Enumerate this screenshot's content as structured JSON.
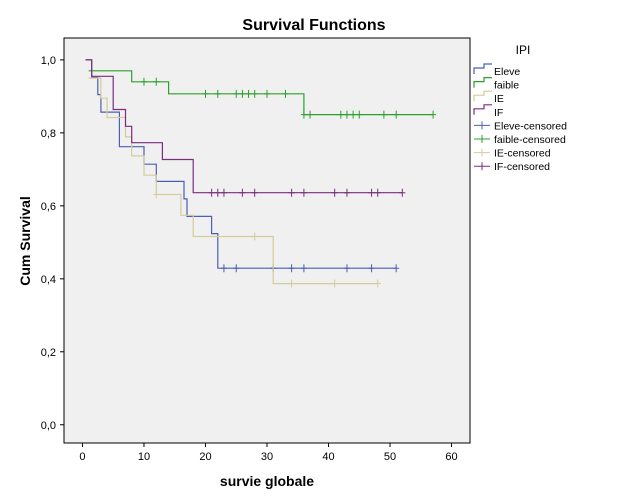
{
  "chart_data": {
    "type": "line",
    "title": "Survival Functions",
    "xlabel": "survie globale",
    "ylabel": "Cum Survival",
    "xlim": [
      -3,
      63
    ],
    "ylim": [
      -0.05,
      1.06
    ],
    "xticks": [
      0,
      10,
      20,
      30,
      40,
      50,
      60
    ],
    "xtick_labels": [
      "0",
      "10",
      "20",
      "30",
      "40",
      "50",
      "60"
    ],
    "yticks": [
      0.0,
      0.2,
      0.4,
      0.6,
      0.8,
      1.0
    ],
    "ytick_labels": [
      "0,0",
      "0,2",
      "0,4",
      "0,6",
      "0,8",
      "1,0"
    ],
    "legend_title": "IPI",
    "legend_position": "right",
    "background": "#f0f0f0",
    "series": [
      {
        "name": "Eleve",
        "color": "#4a5fb5",
        "steps": [
          [
            0.5,
            1.0
          ],
          [
            1.5,
            0.952
          ],
          [
            2.5,
            0.905
          ],
          [
            3,
            0.857
          ],
          [
            6,
            0.762
          ],
          [
            10,
            0.714
          ],
          [
            12,
            0.667
          ],
          [
            16.5,
            0.619
          ],
          [
            17,
            0.571
          ],
          [
            21,
            0.524
          ],
          [
            22,
            0.429
          ],
          [
            51,
            0.429
          ]
        ],
        "censored": [
          [
            23,
            0.429
          ],
          [
            25,
            0.429
          ],
          [
            31,
            0.429
          ],
          [
            34,
            0.429
          ],
          [
            36,
            0.429
          ],
          [
            43,
            0.429
          ],
          [
            47,
            0.429
          ],
          [
            51,
            0.429
          ]
        ]
      },
      {
        "name": "faible",
        "color": "#2ca02c",
        "steps": [
          [
            1,
            0.97
          ],
          [
            8,
            0.94
          ],
          [
            14,
            0.907
          ],
          [
            36,
            0.85
          ],
          [
            57,
            0.85
          ]
        ],
        "censored": [
          [
            10,
            0.94
          ],
          [
            12,
            0.94
          ],
          [
            20,
            0.907
          ],
          [
            22,
            0.907
          ],
          [
            25,
            0.907
          ],
          [
            26,
            0.907
          ],
          [
            27,
            0.907
          ],
          [
            28,
            0.907
          ],
          [
            30,
            0.907
          ],
          [
            33,
            0.907
          ],
          [
            36,
            0.85
          ],
          [
            37,
            0.85
          ],
          [
            42,
            0.85
          ],
          [
            43,
            0.85
          ],
          [
            44,
            0.85
          ],
          [
            45,
            0.85
          ],
          [
            49,
            0.85
          ],
          [
            51,
            0.85
          ],
          [
            57,
            0.85
          ]
        ]
      },
      {
        "name": "IE",
        "color": "#d4cc9a",
        "steps": [
          [
            1,
            0.95
          ],
          [
            3,
            0.895
          ],
          [
            4,
            0.842
          ],
          [
            7,
            0.789
          ],
          [
            8,
            0.737
          ],
          [
            10,
            0.684
          ],
          [
            12,
            0.631
          ],
          [
            16,
            0.574
          ],
          [
            18,
            0.516
          ],
          [
            31,
            0.387
          ],
          [
            48,
            0.387
          ]
        ],
        "censored": [
          [
            12,
            0.631
          ],
          [
            28,
            0.516
          ],
          [
            34,
            0.387
          ],
          [
            41,
            0.387
          ],
          [
            48,
            0.387
          ]
        ]
      },
      {
        "name": "IF",
        "color": "#7b2d7e",
        "steps": [
          [
            0.5,
            1.0
          ],
          [
            1.5,
            0.955
          ],
          [
            5,
            0.864
          ],
          [
            7,
            0.818
          ],
          [
            8,
            0.773
          ],
          [
            13,
            0.727
          ],
          [
            18,
            0.636
          ],
          [
            52,
            0.636
          ]
        ],
        "censored": [
          [
            21,
            0.636
          ],
          [
            22,
            0.636
          ],
          [
            23,
            0.636
          ],
          [
            26,
            0.636
          ],
          [
            28,
            0.636
          ],
          [
            34,
            0.636
          ],
          [
            36,
            0.636
          ],
          [
            41,
            0.636
          ],
          [
            43,
            0.636
          ],
          [
            47,
            0.636
          ],
          [
            48,
            0.636
          ],
          [
            52,
            0.636
          ]
        ]
      }
    ],
    "legend_entries": [
      "Eleve",
      "faible",
      "IE",
      "IF",
      "Eleve-censored",
      "faible-censored",
      "IE-censored",
      "IF-censored"
    ]
  }
}
